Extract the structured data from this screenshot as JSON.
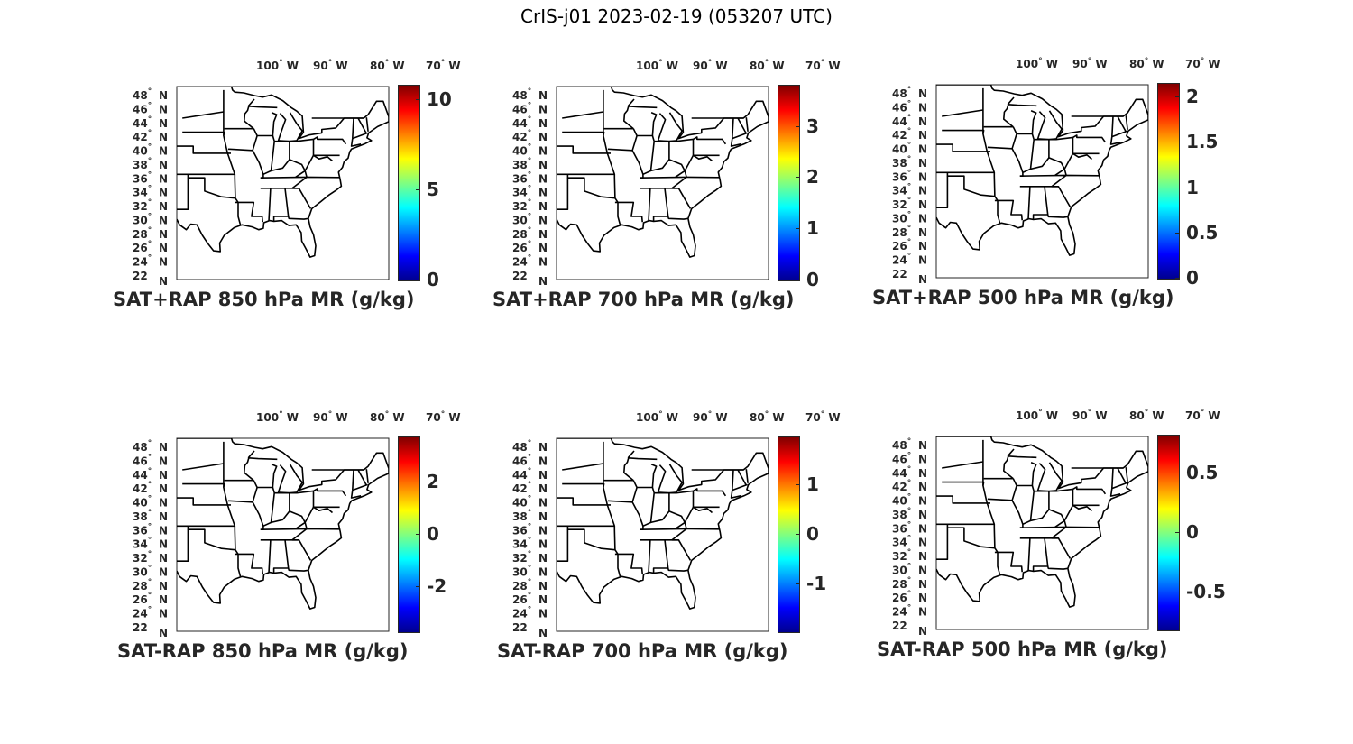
{
  "title": "CrIS-j01 2023-02-19 (053207 UTC)",
  "map": {
    "lon_labels": [
      {
        "value": "100",
        "deg": "°",
        "hemi": "W"
      },
      {
        "value": "90",
        "deg": "°",
        "hemi": "W"
      },
      {
        "value": "80",
        "deg": "°",
        "hemi": "W"
      },
      {
        "value": "70",
        "deg": "°",
        "hemi": "W"
      }
    ],
    "lat_labels": [
      {
        "value": "48",
        "deg": "°",
        "hemi": "N"
      },
      {
        "value": "46",
        "deg": "°",
        "hemi": "N"
      },
      {
        "value": "44",
        "deg": "°",
        "hemi": "N"
      },
      {
        "value": "42",
        "deg": "°",
        "hemi": "N"
      },
      {
        "value": "40",
        "deg": "°",
        "hemi": "N"
      },
      {
        "value": "38",
        "deg": "°",
        "hemi": "N"
      },
      {
        "value": "36",
        "deg": "°",
        "hemi": "N"
      },
      {
        "value": "34",
        "deg": "°",
        "hemi": "N"
      },
      {
        "value": "32",
        "deg": "°",
        "hemi": "N"
      },
      {
        "value": "30",
        "deg": "°",
        "hemi": "N"
      },
      {
        "value": "28",
        "deg": "°",
        "hemi": "N"
      },
      {
        "value": "26",
        "deg": "°",
        "hemi": "N"
      },
      {
        "value": "24",
        "deg": "°",
        "hemi": "N"
      },
      {
        "value": "22",
        "deg": "",
        "hemi": "N"
      }
    ],
    "lon_range": [
      -105,
      -67
    ],
    "lat_range": [
      22,
      49.5
    ]
  },
  "colormap": "jet",
  "panels": [
    {
      "title": "SAT+RAP 850 hPa MR (g/kg)",
      "colorbar": {
        "min": 0,
        "max": 10.8,
        "ticks": [
          {
            "v": 0,
            "label": "0"
          },
          {
            "v": 5,
            "label": "5"
          },
          {
            "v": 10,
            "label": "10"
          }
        ]
      }
    },
    {
      "title": "SAT+RAP 700 hPa MR (g/kg)",
      "colorbar": {
        "min": 0,
        "max": 3.8,
        "ticks": [
          {
            "v": 0,
            "label": "0"
          },
          {
            "v": 1,
            "label": "1"
          },
          {
            "v": 2,
            "label": "2"
          },
          {
            "v": 3,
            "label": "3"
          }
        ]
      }
    },
    {
      "title": "SAT+RAP 500 hPa MR (g/kg)",
      "colorbar": {
        "min": 0,
        "max": 2.15,
        "ticks": [
          {
            "v": 0,
            "label": "0"
          },
          {
            "v": 0.5,
            "label": "0.5"
          },
          {
            "v": 1,
            "label": "1"
          },
          {
            "v": 1.5,
            "label": "1.5"
          },
          {
            "v": 2,
            "label": "2"
          }
        ]
      }
    },
    {
      "title": "SAT-RAP 850 hPa MR (g/kg)",
      "colorbar": {
        "min": -3.7,
        "max": 3.7,
        "ticks": [
          {
            "v": -2,
            "label": "-2"
          },
          {
            "v": 0,
            "label": "0"
          },
          {
            "v": 2,
            "label": "2"
          }
        ]
      }
    },
    {
      "title": "SAT-RAP 700 hPa MR (g/kg)",
      "colorbar": {
        "min": -1.95,
        "max": 1.95,
        "ticks": [
          {
            "v": -1,
            "label": "-1"
          },
          {
            "v": 0,
            "label": "0"
          },
          {
            "v": 1,
            "label": "1"
          }
        ]
      }
    },
    {
      "title": "SAT-RAP 500 hPa MR (g/kg)",
      "colorbar": {
        "min": -0.82,
        "max": 0.82,
        "ticks": [
          {
            "v": -0.5,
            "label": "-0.5"
          },
          {
            "v": 0,
            "label": "0"
          },
          {
            "v": 0.5,
            "label": "0.5"
          }
        ]
      }
    }
  ]
}
